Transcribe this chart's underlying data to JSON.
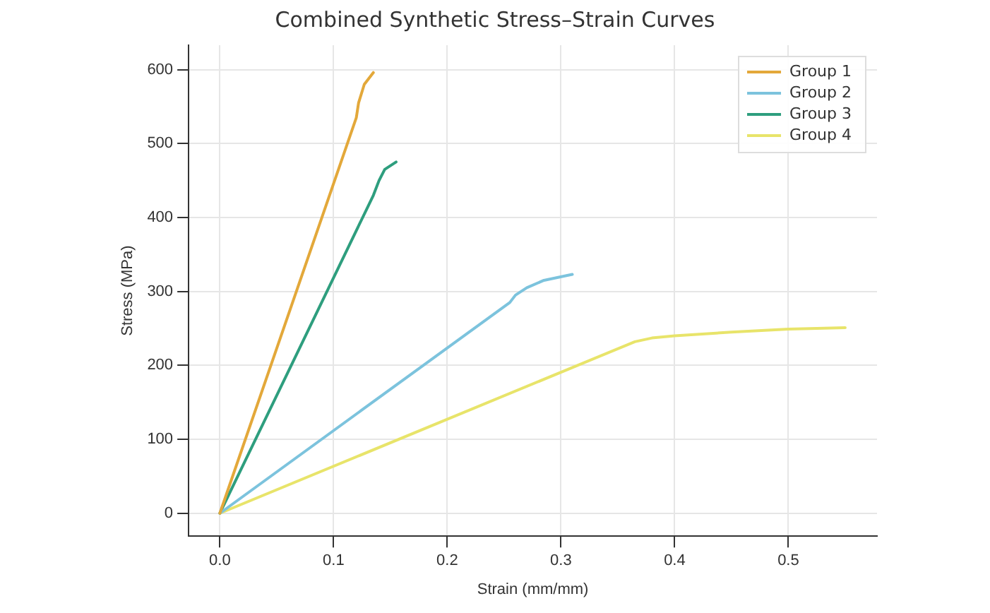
{
  "chart_data": {
    "type": "line",
    "title": "Combined Synthetic Stress–Strain Curves",
    "xlabel": "Strain (mm/mm)",
    "ylabel": "Stress (MPa)",
    "xlim": [
      -0.0275,
      0.578
    ],
    "xticks": [
      {
        "value": 0,
        "label": "0.0"
      },
      0.1,
      0.2,
      0.3,
      0.4,
      0.5
    ],
    "ylim": [
      -31,
      633
    ],
    "yticks": [
      0,
      100,
      200,
      300,
      400,
      500,
      600
    ],
    "grid": true,
    "legend": "top right",
    "marker": "none",
    "line_style": "solid",
    "series": [
      {
        "name": "Group 1",
        "color": "#e3a83a",
        "x": [
          0,
          0.12,
          0.122,
          0.127,
          0.135
        ],
        "values": [
          0,
          535,
          555,
          580,
          596
        ]
      },
      {
        "name": "Group 2",
        "color": "#7cc3dd",
        "x": [
          0,
          0.255,
          0.26,
          0.27,
          0.285,
          0.31
        ],
        "values": [
          0,
          285,
          295,
          305,
          315,
          323
        ]
      },
      {
        "name": "Group 3",
        "color": "#2e9e7e",
        "x": [
          0,
          0.135,
          0.14,
          0.145,
          0.155
        ],
        "values": [
          0,
          430,
          450,
          465,
          475
        ]
      },
      {
        "name": "Group 4",
        "color": "#e8e46a",
        "x": [
          0,
          0.365,
          0.38,
          0.4,
          0.45,
          0.5,
          0.55
        ],
        "values": [
          0,
          232,
          237,
          240,
          245,
          249,
          251
        ]
      }
    ]
  }
}
